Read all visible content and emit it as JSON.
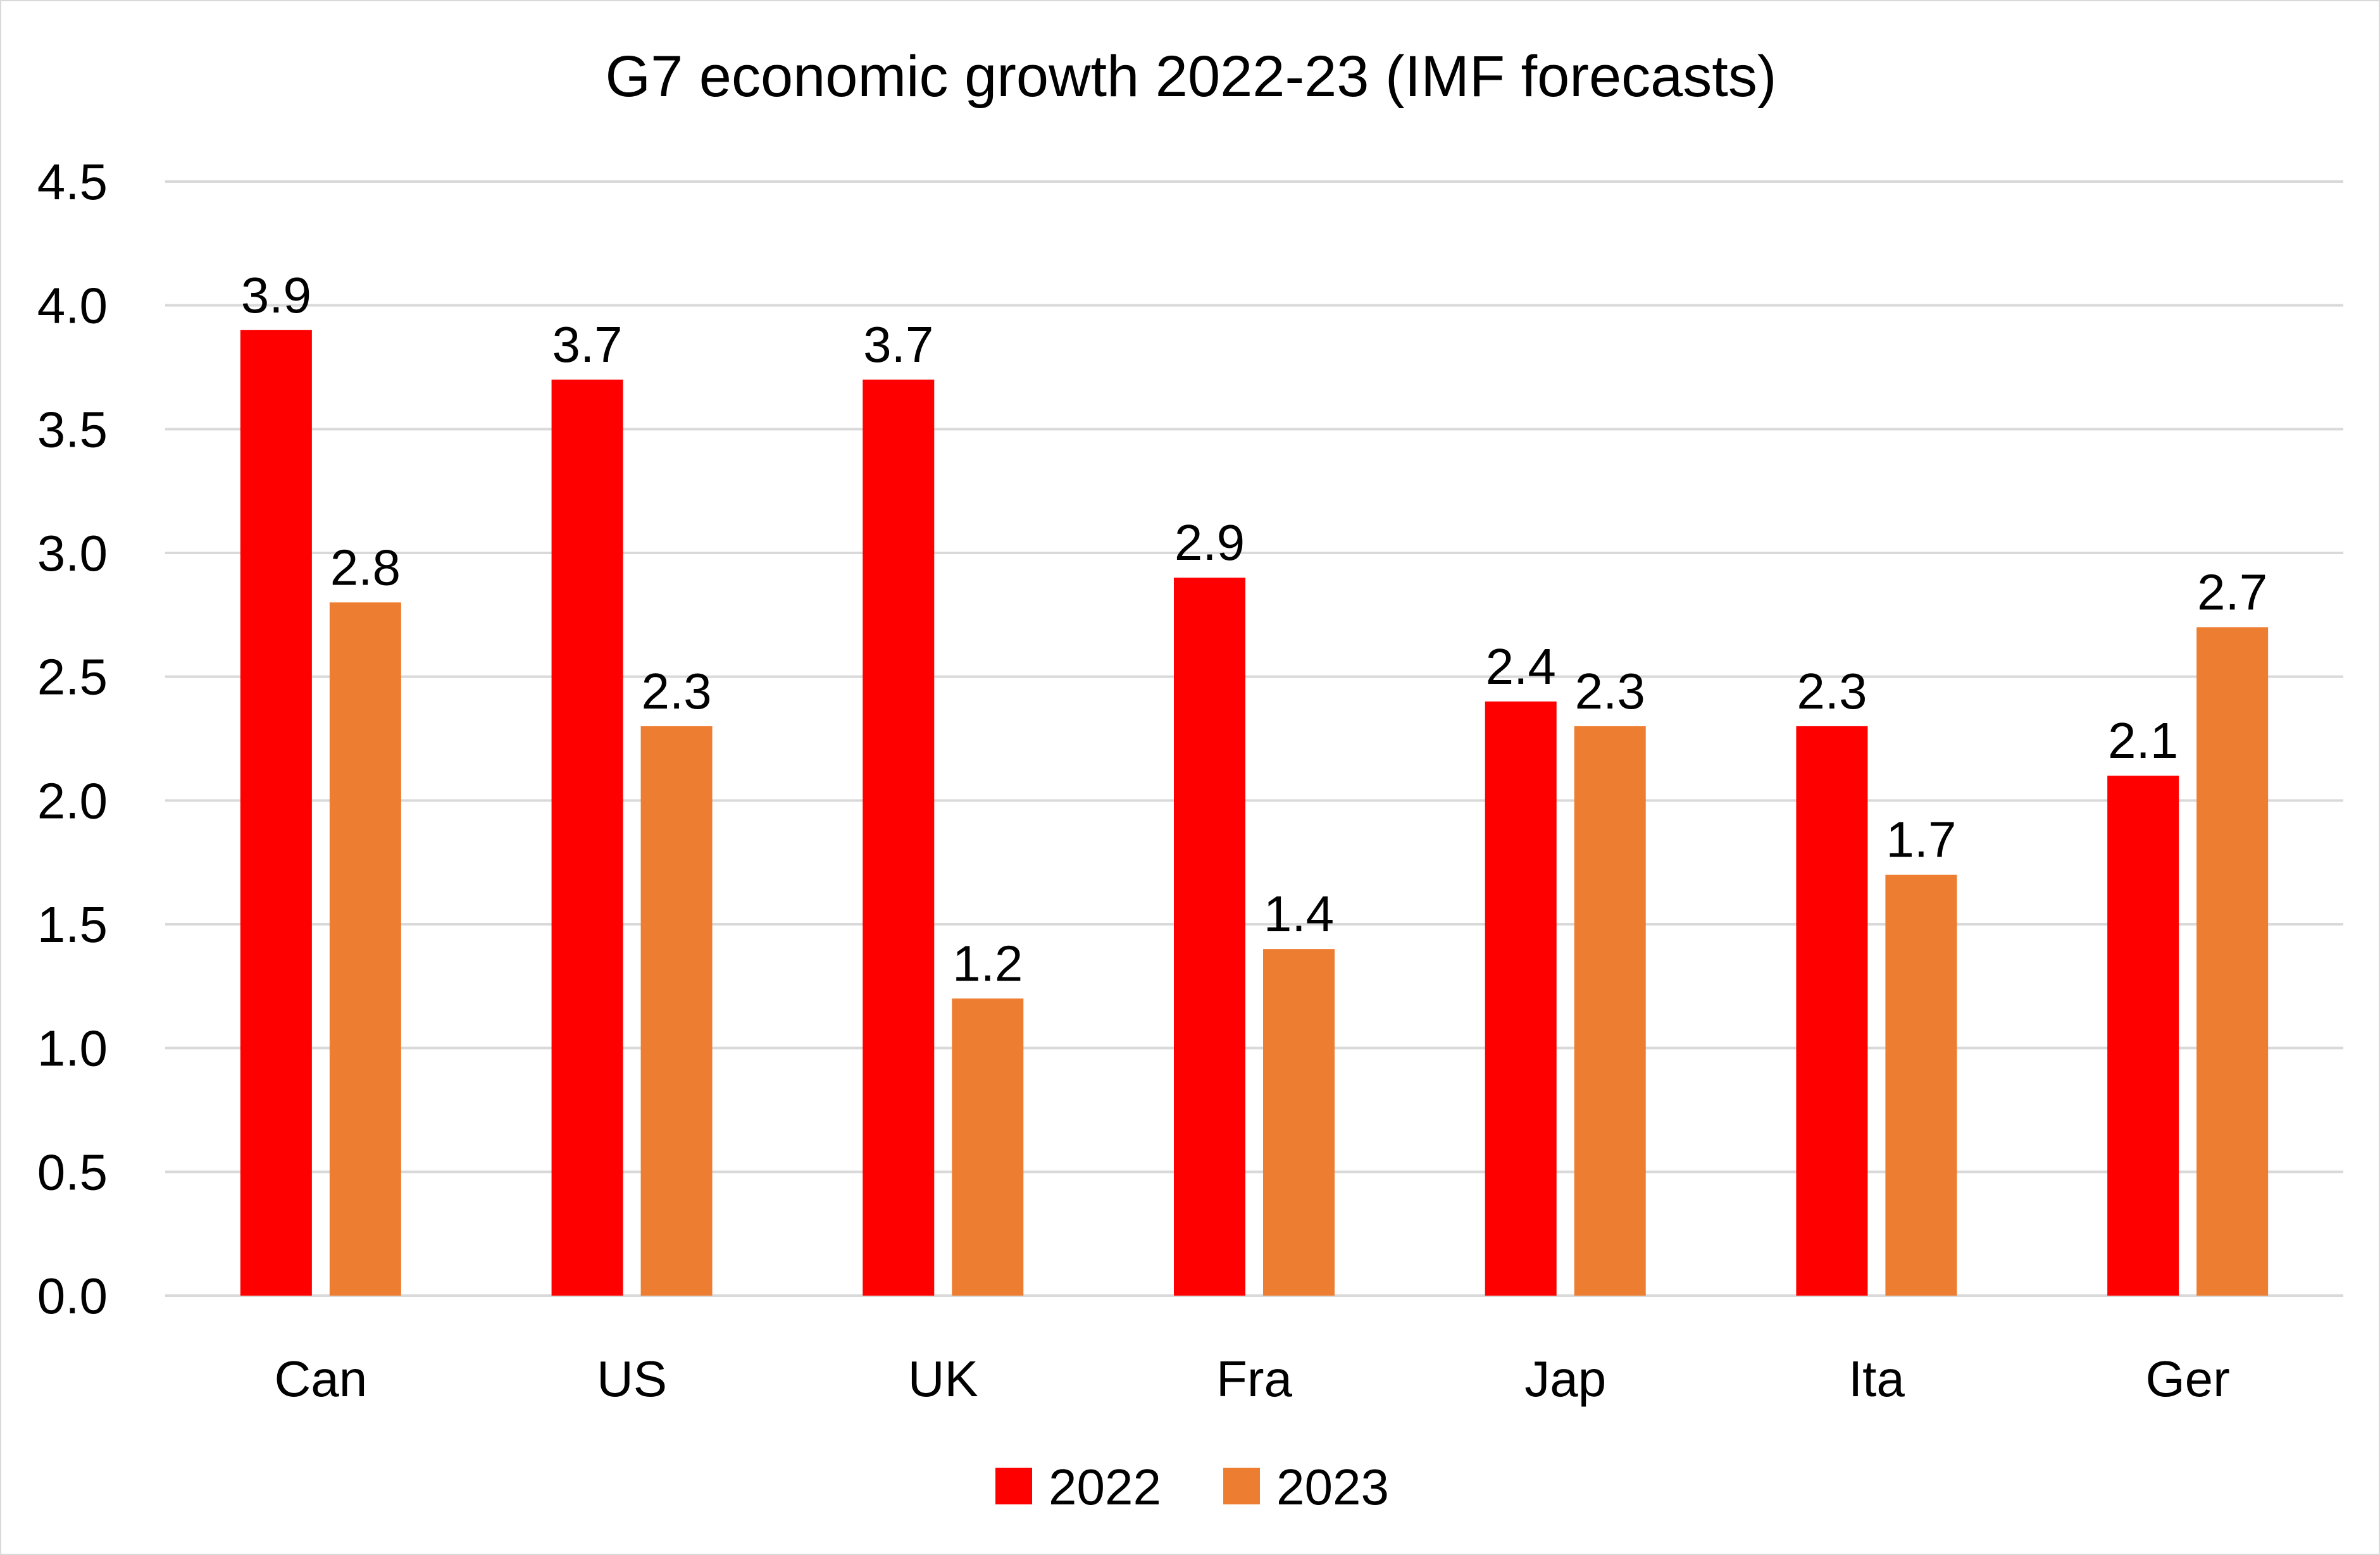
{
  "chart_data": {
    "type": "bar",
    "title": "G7 economic growth 2022-23 (IMF forecasts)",
    "xlabel": "",
    "ylabel": "",
    "categories": [
      "Can",
      "US",
      "UK",
      "Fra",
      "Jap",
      "Ita",
      "Ger"
    ],
    "series": [
      {
        "name": "2022",
        "color": "#FF0000",
        "values": [
          3.9,
          3.7,
          3.7,
          2.9,
          2.4,
          2.3,
          2.1
        ]
      },
      {
        "name": "2023",
        "color": "#ED7D31",
        "values": [
          2.8,
          2.3,
          1.2,
          1.4,
          2.3,
          1.7,
          2.7
        ]
      }
    ],
    "ylim": [
      0,
      4.5
    ],
    "yticks": [
      "0.0",
      "0.5",
      "1.0",
      "1.5",
      "2.0",
      "2.5",
      "3.0",
      "3.5",
      "4.0",
      "4.5"
    ],
    "ytick_values": [
      0,
      0.5,
      1.0,
      1.5,
      2.0,
      2.5,
      3.0,
      3.5,
      4.0,
      4.5
    ],
    "grid": true,
    "data_labels": true,
    "legend": {
      "position": "bottom",
      "entries": [
        "2022",
        "2023"
      ]
    }
  }
}
